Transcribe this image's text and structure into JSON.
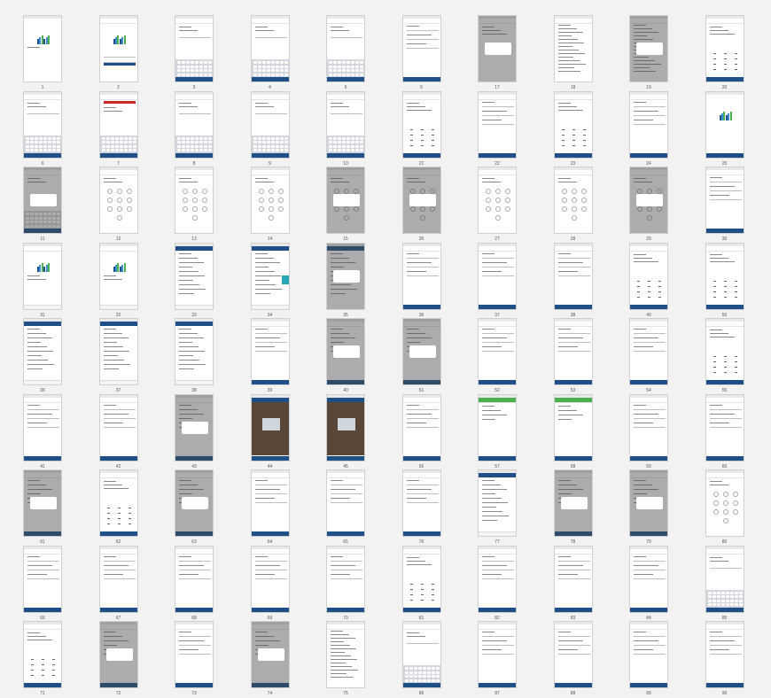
{
  "board": {
    "columns": 10,
    "accent_color": "#1e4f86",
    "screens": [
      {
        "label": "1",
        "variant": "splash"
      },
      {
        "label": "2",
        "variant": "login"
      },
      {
        "label": "3",
        "variant": "keyboard"
      },
      {
        "label": "4",
        "variant": "keyboard"
      },
      {
        "label": "5",
        "variant": "keyboard"
      },
      {
        "label": "6",
        "variant": "form"
      },
      {
        "label": "17",
        "variant": "dialog"
      },
      {
        "label": "18",
        "variant": "document"
      },
      {
        "label": "19",
        "variant": "document-dialog"
      },
      {
        "label": "20",
        "variant": "pinpad"
      },
      {
        "label": "6",
        "variant": "keyboard"
      },
      {
        "label": "7",
        "variant": "error-keyboard"
      },
      {
        "label": "8",
        "variant": "keyboard"
      },
      {
        "label": "9",
        "variant": "keyboard"
      },
      {
        "label": "10",
        "variant": "keyboard"
      },
      {
        "label": "21",
        "variant": "pinpad"
      },
      {
        "label": "22",
        "variant": "form"
      },
      {
        "label": "23",
        "variant": "pinpad"
      },
      {
        "label": "24",
        "variant": "form"
      },
      {
        "label": "25",
        "variant": "splash-bar"
      },
      {
        "label": "11",
        "variant": "keyboard-dialog"
      },
      {
        "label": "12",
        "variant": "pincircles"
      },
      {
        "label": "13",
        "variant": "pincircles"
      },
      {
        "label": "14",
        "variant": "pincircles"
      },
      {
        "label": "15",
        "variant": "pincircles-dialog"
      },
      {
        "label": "26",
        "variant": "pincircles-dialog"
      },
      {
        "label": "27",
        "variant": "pincircles"
      },
      {
        "label": "28",
        "variant": "pincircles"
      },
      {
        "label": "29",
        "variant": "pincircles-dialog"
      },
      {
        "label": "30",
        "variant": "form"
      },
      {
        "label": "31",
        "variant": "tabs"
      },
      {
        "label": "32",
        "variant": "tabs"
      },
      {
        "label": "33",
        "variant": "list"
      },
      {
        "label": "34",
        "variant": "list-cyan"
      },
      {
        "label": "35",
        "variant": "list-dialog"
      },
      {
        "label": "36",
        "variant": "form"
      },
      {
        "label": "37",
        "variant": "form"
      },
      {
        "label": "38",
        "variant": "form"
      },
      {
        "label": "49",
        "variant": "pinpad"
      },
      {
        "label": "50",
        "variant": "pinpad"
      },
      {
        "label": "36",
        "variant": "list"
      },
      {
        "label": "37",
        "variant": "list"
      },
      {
        "label": "38",
        "variant": "list"
      },
      {
        "label": "39",
        "variant": "form"
      },
      {
        "label": "40",
        "variant": "form-dialog"
      },
      {
        "label": "51",
        "variant": "form-dialog"
      },
      {
        "label": "52",
        "variant": "form"
      },
      {
        "label": "53",
        "variant": "form"
      },
      {
        "label": "54",
        "variant": "form"
      },
      {
        "label": "55",
        "variant": "pinpad"
      },
      {
        "label": "41",
        "variant": "form"
      },
      {
        "label": "42",
        "variant": "form"
      },
      {
        "label": "43",
        "variant": "form-dialog"
      },
      {
        "label": "44",
        "variant": "photo"
      },
      {
        "label": "45",
        "variant": "photo"
      },
      {
        "label": "56",
        "variant": "form"
      },
      {
        "label": "57",
        "variant": "green"
      },
      {
        "label": "58",
        "variant": "green"
      },
      {
        "label": "59",
        "variant": "form"
      },
      {
        "label": "60",
        "variant": "form"
      },
      {
        "label": "61",
        "variant": "form-dialog"
      },
      {
        "label": "62",
        "variant": "pinpad"
      },
      {
        "label": "63",
        "variant": "form-dialog"
      },
      {
        "label": "64",
        "variant": "form"
      },
      {
        "label": "65",
        "variant": "form"
      },
      {
        "label": "76",
        "variant": "form"
      },
      {
        "label": "77",
        "variant": "list"
      },
      {
        "label": "78",
        "variant": "form-dialog"
      },
      {
        "label": "79",
        "variant": "form-dialog"
      },
      {
        "label": "80",
        "variant": "pincircles"
      },
      {
        "label": "66",
        "variant": "form"
      },
      {
        "label": "67",
        "variant": "form"
      },
      {
        "label": "68",
        "variant": "form"
      },
      {
        "label": "69",
        "variant": "form"
      },
      {
        "label": "70",
        "variant": "form"
      },
      {
        "label": "81",
        "variant": "pinpad"
      },
      {
        "label": "82",
        "variant": "form"
      },
      {
        "label": "83",
        "variant": "form"
      },
      {
        "label": "84",
        "variant": "form"
      },
      {
        "label": "85",
        "variant": "keyboard"
      },
      {
        "label": "71",
        "variant": "pinpad"
      },
      {
        "label": "72",
        "variant": "form-dialog"
      },
      {
        "label": "73",
        "variant": "form"
      },
      {
        "label": "74",
        "variant": "form-dialog"
      },
      {
        "label": "75",
        "variant": "document"
      },
      {
        "label": "86",
        "variant": "keyboard"
      },
      {
        "label": "87",
        "variant": "form"
      },
      {
        "label": "88",
        "variant": "form"
      },
      {
        "label": "89",
        "variant": "form"
      },
      {
        "label": "90",
        "variant": "form"
      }
    ]
  }
}
